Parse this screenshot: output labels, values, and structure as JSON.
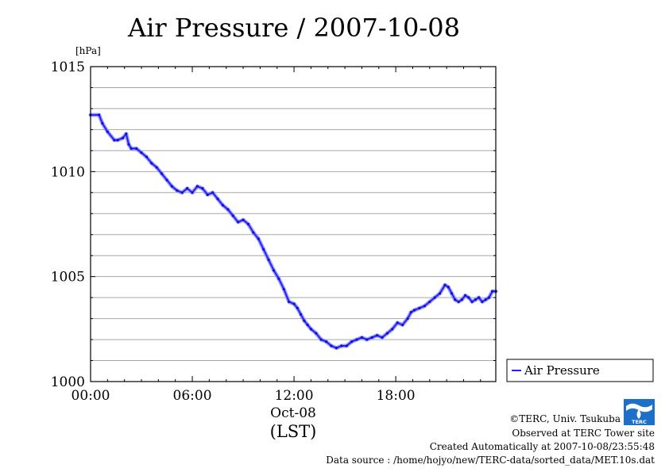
{
  "chart_data": {
    "type": "line",
    "title": "Air Pressure / 2007-10-08",
    "ylabel": "[hPa]",
    "ylim": [
      1000,
      1015
    ],
    "y_ticks": [
      "1015",
      "1010",
      "1005",
      "1000"
    ],
    "xlim": [
      0,
      23.9
    ],
    "x_ticks": [
      "00:00",
      "06:00",
      "12:00",
      "18:00"
    ],
    "x_date_label": "Oct-08",
    "x_unit_label": "(LST)",
    "grid": true,
    "legend": "right",
    "series": [
      {
        "name": "Air Pressure",
        "color": "#2222ff",
        "x": [
          0,
          0.5,
          0.7,
          1.0,
          1.4,
          1.6,
          1.9,
          2.1,
          2.25,
          2.4,
          2.7,
          3.0,
          3.3,
          3.6,
          3.9,
          4.2,
          4.5,
          4.8,
          5.1,
          5.4,
          5.7,
          6.0,
          6.3,
          6.6,
          6.9,
          7.2,
          7.5,
          7.8,
          8.1,
          8.4,
          8.7,
          9.0,
          9.3,
          9.6,
          9.9,
          10.2,
          10.5,
          10.8,
          11.1,
          11.4,
          11.7,
          12.0,
          12.2,
          12.4,
          12.6,
          12.8,
          13.0,
          13.3,
          13.6,
          13.9,
          14.2,
          14.5,
          14.8,
          15.1,
          15.4,
          15.7,
          16.0,
          16.3,
          16.6,
          16.9,
          17.2,
          17.5,
          17.8,
          18.1,
          18.4,
          18.7,
          18.9,
          19.1,
          19.4,
          19.7,
          20.0,
          20.3,
          20.6,
          20.9,
          21.1,
          21.3,
          21.5,
          21.7,
          21.9,
          22.1,
          22.3,
          22.5,
          22.7,
          22.9,
          23.1,
          23.3,
          23.5,
          23.7,
          23.9
        ],
        "values": [
          1012.7,
          1012.7,
          1012.3,
          1011.9,
          1011.5,
          1011.5,
          1011.6,
          1011.8,
          1011.3,
          1011.1,
          1011.1,
          1010.9,
          1010.7,
          1010.4,
          1010.2,
          1009.9,
          1009.6,
          1009.3,
          1009.1,
          1009.0,
          1009.2,
          1009.0,
          1009.3,
          1009.2,
          1008.9,
          1009.0,
          1008.7,
          1008.4,
          1008.2,
          1007.9,
          1007.6,
          1007.7,
          1007.5,
          1007.1,
          1006.8,
          1006.3,
          1005.8,
          1005.3,
          1004.9,
          1004.4,
          1003.8,
          1003.7,
          1003.5,
          1003.2,
          1002.9,
          1002.7,
          1002.5,
          1002.3,
          1002.0,
          1001.9,
          1001.7,
          1001.6,
          1001.7,
          1001.7,
          1001.9,
          1002.0,
          1002.1,
          1002.0,
          1002.1,
          1002.2,
          1002.1,
          1002.3,
          1002.5,
          1002.8,
          1002.7,
          1003.0,
          1003.3,
          1003.4,
          1003.5,
          1003.6,
          1003.8,
          1004.0,
          1004.2,
          1004.6,
          1004.5,
          1004.2,
          1003.9,
          1003.8,
          1003.9,
          1004.1,
          1004.0,
          1003.8,
          1003.9,
          1004.0,
          1003.8,
          1003.9,
          1004.0,
          1004.3,
          1004.3
        ]
      }
    ]
  },
  "footer": {
    "copyright": "©TERC, Univ. Tsukuba",
    "observed": "Observed at TERC Tower site",
    "created": "Created Automatically at 2007-10-08/23:55:48",
    "source": "Data source : /home/hojyo/new/TERC-data/sorted_data/MET.10s.dat",
    "logo_text": "TERC"
  }
}
